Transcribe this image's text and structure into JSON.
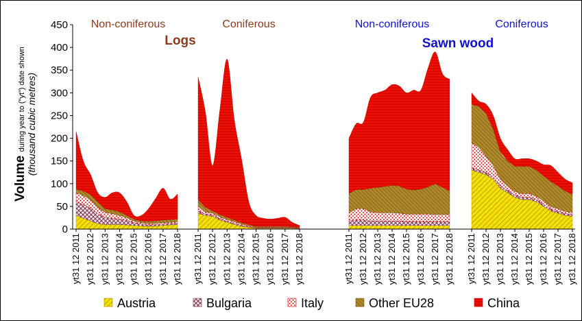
{
  "chart_data": {
    "type": "area",
    "stacked": true,
    "ylabel_main": "Volume",
    "ylabel_sub": "during year to (\"yt\") date shown",
    "ylabel_units": "(thousand cubic metres)",
    "ylim": [
      0,
      450
    ],
    "yticks": [
      0,
      50,
      100,
      150,
      200,
      250,
      300,
      350,
      400,
      450
    ],
    "grid": false,
    "legend_position": "bottom",
    "group_labels": [
      {
        "text": "Logs",
        "color": "#8b3a1a"
      },
      {
        "text": "Sawn wood",
        "color": "#1010cc"
      }
    ],
    "series_names": [
      "Austria",
      "Bulgaria",
      "Italy",
      "Other EU28",
      "China"
    ],
    "series_colors": [
      "#e8d000",
      "#8a4a5a",
      "#dd1111",
      "#9a7a1a",
      "#ee1100"
    ],
    "x_tick_labels": [
      "yt31 12 2011",
      "yt31 12 2012",
      "yt31 12 2013",
      "yt31 12 2014",
      "yt31 12 2015",
      "yt31 12 2016",
      "yt31 12 2017",
      "yt31 12 2018"
    ],
    "panels": [
      {
        "title": "Non-coniferous",
        "title_color": "#8b3a1a",
        "x": [
          "2011-12",
          "2012-06",
          "2012-12",
          "2013-06",
          "2013-12",
          "2014-06",
          "2014-12",
          "2015-06",
          "2015-12",
          "2016-06",
          "2016-12",
          "2017-06",
          "2017-12",
          "2018-06",
          "2018-12"
        ],
        "series": [
          {
            "name": "Austria",
            "values": [
              30,
              24,
              18,
              12,
              10,
              10,
              10,
              9,
              8,
              7,
              6,
              7,
              8,
              9,
              10
            ]
          },
          {
            "name": "Bulgaria",
            "values": [
              30,
              30,
              28,
              22,
              15,
              14,
              12,
              10,
              6,
              4,
              3,
              3,
              3,
              3,
              3
            ]
          },
          {
            "name": "Italy",
            "values": [
              20,
              20,
              18,
              14,
              12,
              10,
              8,
              6,
              4,
              3,
              3,
              3,
              3,
              3,
              3
            ]
          },
          {
            "name": "Other EU28",
            "values": [
              8,
              10,
              12,
              12,
              8,
              8,
              8,
              5,
              4,
              4,
              5,
              5,
              6,
              6,
              6
            ]
          },
          {
            "name": "China",
            "values": [
              127,
              66,
              44,
              20,
              25,
              38,
              42,
              30,
              8,
              12,
              28,
              50,
              70,
              45,
              55
            ]
          }
        ]
      },
      {
        "title": "Coniferous",
        "title_color": "#8b3a1a",
        "x": [
          "2011-12",
          "2012-06",
          "2012-12",
          "2013-06",
          "2013-12",
          "2014-06",
          "2014-12",
          "2015-06",
          "2015-12",
          "2016-06",
          "2016-12",
          "2017-06",
          "2017-12",
          "2018-06",
          "2018-12"
        ],
        "series": [
          {
            "name": "Austria",
            "values": [
              35,
              30,
              28,
              20,
              15,
              10,
              6,
              4,
              2,
              2,
              2,
              2,
              2,
              2,
              1
            ]
          },
          {
            "name": "Bulgaria",
            "values": [
              5,
              3,
              3,
              3,
              2,
              2,
              2,
              1,
              1,
              1,
              1,
              1,
              1,
              1,
              1
            ]
          },
          {
            "name": "Italy",
            "values": [
              10,
              5,
              4,
              4,
              4,
              4,
              3,
              2,
              1,
              1,
              1,
              1,
              1,
              1,
              1
            ]
          },
          {
            "name": "Other EU28",
            "values": [
              15,
              10,
              5,
              5,
              5,
              4,
              3,
              3,
              2,
              2,
              2,
              2,
              2,
              1,
              1
            ]
          },
          {
            "name": "China",
            "values": [
              270,
              210,
              100,
              230,
              348,
              220,
              140,
              50,
              24,
              18,
              16,
              18,
              20,
              10,
              4
            ]
          }
        ]
      },
      {
        "title": "Non-coniferous",
        "title_color": "#1010cc",
        "x": [
          "2011-12",
          "2012-06",
          "2012-12",
          "2013-06",
          "2013-12",
          "2014-06",
          "2014-12",
          "2015-06",
          "2015-12",
          "2016-06",
          "2016-12",
          "2017-06",
          "2017-12",
          "2018-06",
          "2018-12"
        ],
        "series": [
          {
            "name": "Austria",
            "values": [
              8,
              8,
              8,
              8,
              8,
              8,
              8,
              8,
              8,
              8,
              8,
              8,
              8,
              8,
              8
            ]
          },
          {
            "name": "Bulgaria",
            "values": [
              10,
              12,
              12,
              10,
              10,
              10,
              10,
              10,
              8,
              8,
              8,
              8,
              8,
              8,
              8
            ]
          },
          {
            "name": "Italy",
            "values": [
              17,
              25,
              25,
              20,
              18,
              18,
              18,
              17,
              17,
              17,
              17,
              17,
              16,
              16,
              16
            ]
          },
          {
            "name": "Other EU28",
            "values": [
              43,
              42,
              42,
              52,
              56,
              58,
              60,
              60,
              55,
              53,
              55,
              60,
              68,
              60,
              52
            ]
          },
          {
            "name": "China",
            "values": [
              122,
              145,
              148,
              200,
              208,
              212,
              222,
              220,
              212,
              220,
              218,
              262,
              290,
              250,
              246
            ]
          }
        ]
      },
      {
        "title": "Coniferous",
        "title_color": "#1010cc",
        "x": [
          "2011-12",
          "2012-06",
          "2012-12",
          "2013-06",
          "2013-12",
          "2014-06",
          "2014-12",
          "2015-06",
          "2015-12",
          "2016-06",
          "2016-12",
          "2017-06",
          "2017-12",
          "2018-06",
          "2018-12"
        ],
        "series": [
          {
            "name": "Austria",
            "values": [
              130,
              125,
              120,
              110,
              90,
              80,
              70,
              65,
              65,
              60,
              50,
              40,
              35,
              30,
              28
            ]
          },
          {
            "name": "Bulgaria",
            "values": [
              5,
              5,
              5,
              5,
              5,
              5,
              5,
              5,
              5,
              5,
              5,
              4,
              4,
              4,
              4
            ]
          },
          {
            "name": "Italy",
            "values": [
              55,
              50,
              35,
              25,
              15,
              10,
              8,
              8,
              8,
              7,
              7,
              6,
              6,
              5,
              5
            ]
          },
          {
            "name": "Other EU28",
            "values": [
              85,
              90,
              95,
              80,
              60,
              55,
              55,
              60,
              60,
              58,
              55,
              55,
              50,
              45,
              40
            ]
          },
          {
            "name": "China",
            "values": [
              25,
              12,
              20,
              30,
              30,
              25,
              17,
              17,
              17,
              20,
              25,
              35,
              30,
              26,
              25
            ]
          }
        ]
      }
    ]
  }
}
